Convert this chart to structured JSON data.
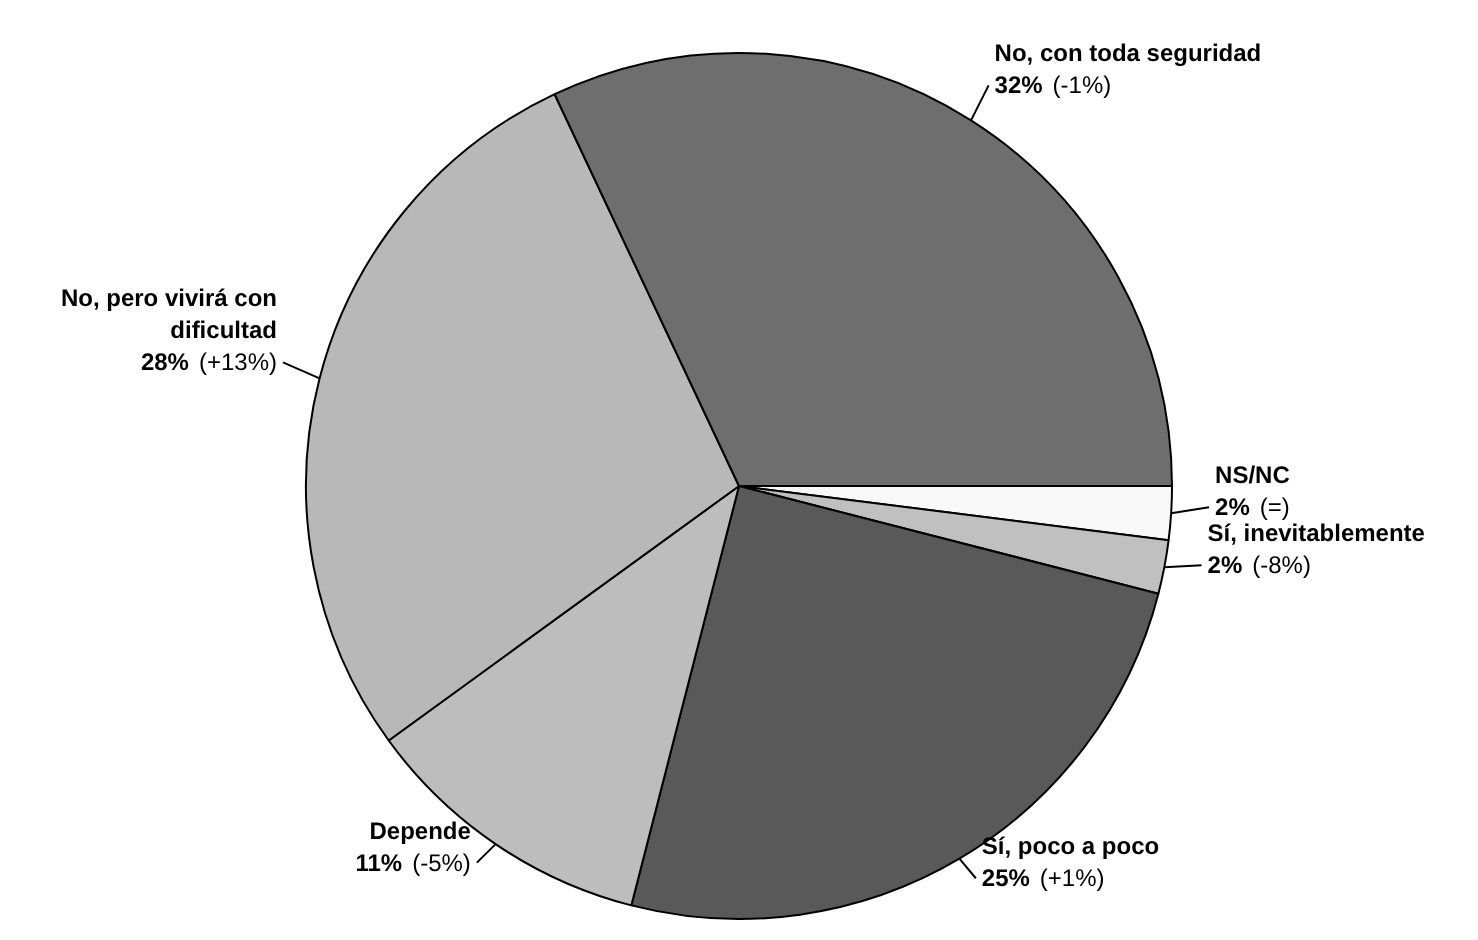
{
  "chart_data": {
    "type": "pie",
    "categories": [
      "NS/NC",
      "Sí, inevitablemente",
      "Sí, poco a poco",
      "Depende",
      "No, pero vivirá con dificultad",
      "No, con toda seguridad"
    ],
    "values": [
      2,
      2,
      25,
      11,
      28,
      32
    ],
    "colors": [
      "#f8f8f8",
      "#c0c0c0",
      "#595959",
      "#bdbdbd",
      "#b8b8b8",
      "#6e6e6e"
    ],
    "value_labels": [
      "2%",
      "2%",
      "25%",
      "11%",
      "28%",
      "32%"
    ],
    "legend": false,
    "annotations": [
      {
        "text": "(=)",
        "x": "NS/NC"
      },
      {
        "text": "(-8%)",
        "x": "Sí, inevitablemente"
      },
      {
        "text": "(+1%)",
        "x": "Sí, poco a poco"
      },
      {
        "text": "(-5%)",
        "x": "Depende"
      },
      {
        "text": "(+13%)",
        "x": "No, pero vivirá con dificultad"
      },
      {
        "text": "(-1%)",
        "x": "No, con toda seguridad"
      }
    ]
  }
}
